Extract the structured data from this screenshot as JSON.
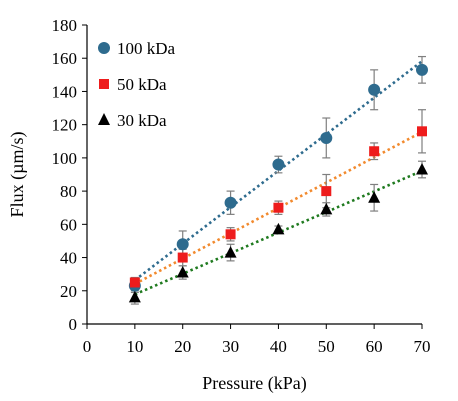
{
  "chart_data": {
    "type": "scatter",
    "xlabel": "Pressure (kPa)",
    "ylabel": "Flux (µm/s)",
    "xlim": [
      0,
      70
    ],
    "ylim": [
      0,
      180
    ],
    "xticks": [
      0,
      10,
      20,
      30,
      40,
      50,
      60,
      70
    ],
    "yticks": [
      0,
      20,
      40,
      60,
      80,
      100,
      120,
      140,
      160,
      180
    ],
    "grid": false,
    "legend_position": "top-left",
    "series": [
      {
        "name": "100 kDa",
        "marker": "circle",
        "color": "#2e6b8e",
        "trendline_color": "#2e6b8e",
        "x": [
          10,
          20,
          30,
          40,
          50,
          60,
          70
        ],
        "y": [
          23,
          48,
          73,
          96,
          112,
          141,
          153
        ],
        "err": [
          4,
          8,
          7,
          5,
          12,
          12,
          8
        ]
      },
      {
        "name": "50 kDa",
        "marker": "square",
        "color": "#ee1c1c",
        "trendline_color": "#f28a2e",
        "x": [
          10,
          20,
          30,
          40,
          50,
          60,
          70
        ],
        "y": [
          25,
          40,
          54,
          70,
          80,
          104,
          116
        ],
        "err": [
          3,
          5,
          4,
          4,
          10,
          5,
          13
        ]
      },
      {
        "name": "30 kDa",
        "marker": "triangle",
        "color": "#000000",
        "trendline_color": "#1f7a1f",
        "x": [
          10,
          20,
          30,
          40,
          50,
          60,
          70
        ],
        "y": [
          16,
          31,
          43,
          57,
          69,
          76,
          93
        ],
        "err": [
          4,
          4,
          5,
          2,
          4,
          8,
          5
        ]
      }
    ]
  }
}
